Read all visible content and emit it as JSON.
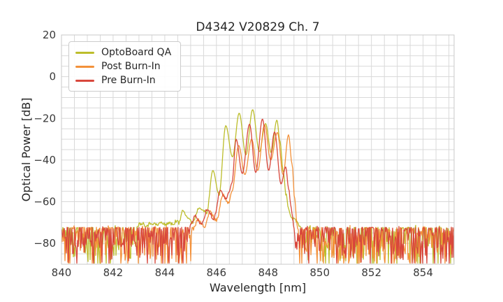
{
  "chart_data": {
    "type": "line",
    "title": "D4342 V20829 Ch. 7",
    "xlabel": "Wavelength [nm]",
    "ylabel": "Optical Power [dB]",
    "xlim": [
      840,
      855.2
    ],
    "ylim": [
      -90,
      20
    ],
    "xticks": [
      840,
      842,
      844,
      846,
      848,
      850,
      852,
      854
    ],
    "yticks": [
      20,
      0,
      -20,
      -40,
      -60,
      -80
    ],
    "grid": {
      "show": true,
      "minor_x_step_nm": 0.5,
      "minor_y_step_db": 5,
      "color": "#d9d9d9",
      "spine_color": "#c9c9c9"
    },
    "legend": {
      "position": "upper-left"
    },
    "noise_floor": {
      "typical_db": -77,
      "band_top_db": -72,
      "spikes_to_db": -90
    },
    "series": [
      {
        "name": "OptoBoard QA",
        "color": "#bcbd2b",
        "noise_regions": [
          [
            840,
            842.9
          ],
          [
            849.25,
            855.2
          ]
        ],
        "points": [
          [
            842.9,
            -71.5
          ],
          [
            843.1,
            -70.2
          ],
          [
            843.3,
            -71.3
          ],
          [
            843.5,
            -70.1
          ],
          [
            843.7,
            -71.2
          ],
          [
            843.85,
            -70.0
          ],
          [
            844.0,
            -71.0
          ],
          [
            844.15,
            -70.1
          ],
          [
            844.3,
            -70.9
          ],
          [
            844.45,
            -69.2
          ],
          [
            844.55,
            -70.3
          ],
          [
            844.7,
            -63.5
          ],
          [
            844.88,
            -67.5
          ],
          [
            845.05,
            -70.0
          ],
          [
            845.35,
            -62.5
          ],
          [
            845.62,
            -65.5
          ],
          [
            845.86,
            -45.0
          ],
          [
            846.1,
            -56.5
          ],
          [
            846.36,
            -23.5
          ],
          [
            846.62,
            -38.5
          ],
          [
            846.88,
            -17.5
          ],
          [
            847.14,
            -37.5
          ],
          [
            847.4,
            -15.8
          ],
          [
            847.66,
            -36.0
          ],
          [
            847.9,
            -22.5
          ],
          [
            848.12,
            -36.5
          ],
          [
            848.34,
            -20.8
          ],
          [
            848.46,
            -31.0
          ],
          [
            848.58,
            -45.0
          ],
          [
            848.7,
            -57.0
          ],
          [
            848.82,
            -65.0
          ],
          [
            848.95,
            -68.0
          ],
          [
            849.05,
            -68.5
          ],
          [
            849.15,
            -70.8
          ],
          [
            849.25,
            -71.5
          ]
        ]
      },
      {
        "name": "Post Burn-In",
        "color": "#f3913a",
        "noise_regions": [
          [
            840,
            845.08
          ],
          [
            849.12,
            855.2
          ]
        ],
        "points": [
          [
            845.08,
            -73.0
          ],
          [
            845.3,
            -68.5
          ],
          [
            845.52,
            -72.0
          ],
          [
            845.75,
            -65.0
          ],
          [
            846.0,
            -69.0
          ],
          [
            846.25,
            -57.0
          ],
          [
            846.48,
            -60.5
          ],
          [
            846.6,
            -55.0
          ],
          [
            846.86,
            -33.0
          ],
          [
            847.1,
            -47.0
          ],
          [
            847.36,
            -30.0
          ],
          [
            847.6,
            -45.0
          ],
          [
            847.86,
            -23.0
          ],
          [
            848.1,
            -40.0
          ],
          [
            848.36,
            -26.8
          ],
          [
            848.58,
            -47.0
          ],
          [
            848.79,
            -27.9
          ],
          [
            848.93,
            -42.0
          ],
          [
            849.02,
            -57.0
          ],
          [
            849.12,
            -71.5
          ]
        ]
      },
      {
        "name": "Pre Burn-In",
        "color": "#d8473c",
        "noise_regions": [
          [
            840,
            844.95
          ],
          [
            849.0,
            855.2
          ]
        ],
        "points": [
          [
            844.95,
            -72.0
          ],
          [
            845.2,
            -67.0
          ],
          [
            845.42,
            -71.0
          ],
          [
            845.65,
            -63.5
          ],
          [
            845.9,
            -68.0
          ],
          [
            846.15,
            -54.5
          ],
          [
            846.35,
            -58.5
          ],
          [
            846.48,
            -55.5
          ],
          [
            846.6,
            -51.0
          ],
          [
            846.76,
            -30.0
          ],
          [
            847.0,
            -46.5
          ],
          [
            847.28,
            -22.8
          ],
          [
            847.52,
            -46.0
          ],
          [
            847.78,
            -20.3
          ],
          [
            848.02,
            -45.0
          ],
          [
            848.25,
            -26.5
          ],
          [
            848.5,
            -51.5
          ],
          [
            848.68,
            -43.3
          ],
          [
            848.8,
            -54.0
          ],
          [
            848.9,
            -64.0
          ],
          [
            849.0,
            -71.5
          ]
        ]
      }
    ]
  }
}
